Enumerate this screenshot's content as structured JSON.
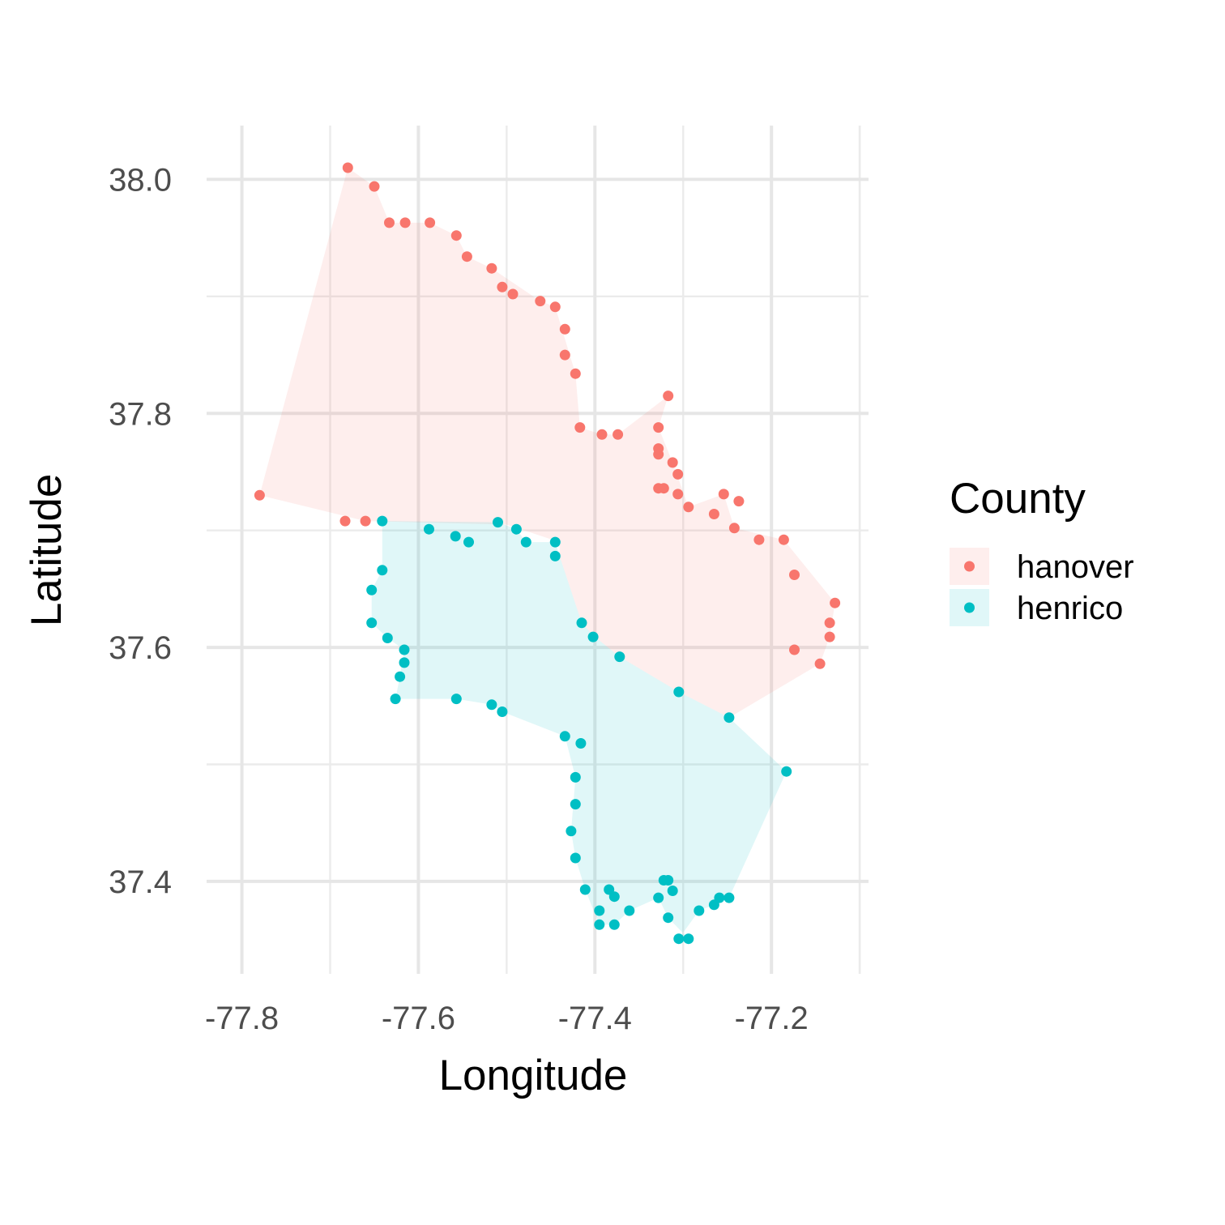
{
  "chart_data": {
    "type": "scatter",
    "title": "",
    "xlabel": "Longitude",
    "ylabel": "Latitude",
    "xlim": [
      -77.84,
      -77.09
    ],
    "ylim": [
      37.321,
      38.046
    ],
    "x_ticks": [
      -77.8,
      -77.6,
      -77.4,
      -77.2
    ],
    "x_tick_labels": [
      "-77.8",
      "-77.6",
      "-77.4",
      "-77.2"
    ],
    "y_ticks": [
      37.4,
      37.6,
      37.8,
      38.0
    ],
    "y_tick_labels": [
      "37.4",
      "37.6",
      "37.8",
      "38.0"
    ],
    "grid": true,
    "legend": {
      "title": "County",
      "position": "right"
    },
    "series": [
      {
        "name": "hanover",
        "color": "#F8766D",
        "points": [
          [
            -77.68,
            38.01
          ],
          [
            -77.65,
            37.994
          ],
          [
            -77.633,
            37.963
          ],
          [
            -77.615,
            37.963
          ],
          [
            -77.587,
            37.963
          ],
          [
            -77.557,
            37.952
          ],
          [
            -77.545,
            37.934
          ],
          [
            -77.517,
            37.924
          ],
          [
            -77.505,
            37.908
          ],
          [
            -77.493,
            37.902
          ],
          [
            -77.462,
            37.896
          ],
          [
            -77.445,
            37.891
          ],
          [
            -77.434,
            37.872
          ],
          [
            -77.434,
            37.85
          ],
          [
            -77.422,
            37.834
          ],
          [
            -77.417,
            37.788
          ],
          [
            -77.392,
            37.782
          ],
          [
            -77.374,
            37.782
          ],
          [
            -77.328,
            37.788
          ],
          [
            -77.328,
            37.77
          ],
          [
            -77.328,
            37.765
          ],
          [
            -77.317,
            37.815
          ],
          [
            -77.312,
            37.758
          ],
          [
            -77.306,
            37.748
          ],
          [
            -77.328,
            37.736
          ],
          [
            -77.322,
            37.736
          ],
          [
            -77.306,
            37.731
          ],
          [
            -77.294,
            37.72
          ],
          [
            -77.265,
            37.714
          ],
          [
            -77.254,
            37.731
          ],
          [
            -77.237,
            37.725
          ],
          [
            -77.242,
            37.702
          ],
          [
            -77.214,
            37.692
          ],
          [
            -77.186,
            37.692
          ],
          [
            -77.174,
            37.662
          ],
          [
            -77.128,
            37.638
          ],
          [
            -77.134,
            37.621
          ],
          [
            -77.134,
            37.609
          ],
          [
            -77.174,
            37.598
          ],
          [
            -77.145,
            37.586
          ],
          [
            -77.78,
            37.73
          ],
          [
            -77.683,
            37.708
          ],
          [
            -77.66,
            37.708
          ]
        ],
        "hull": [
          [
            -77.68,
            38.01
          ],
          [
            -77.65,
            37.994
          ],
          [
            -77.633,
            37.963
          ],
          [
            -77.587,
            37.963
          ],
          [
            -77.557,
            37.952
          ],
          [
            -77.545,
            37.934
          ],
          [
            -77.517,
            37.924
          ],
          [
            -77.462,
            37.896
          ],
          [
            -77.445,
            37.891
          ],
          [
            -77.422,
            37.834
          ],
          [
            -77.417,
            37.788
          ],
          [
            -77.392,
            37.782
          ],
          [
            -77.374,
            37.782
          ],
          [
            -77.317,
            37.815
          ],
          [
            -77.328,
            37.788
          ],
          [
            -77.312,
            37.758
          ],
          [
            -77.294,
            37.72
          ],
          [
            -77.254,
            37.731
          ],
          [
            -77.242,
            37.702
          ],
          [
            -77.186,
            37.692
          ],
          [
            -77.128,
            37.638
          ],
          [
            -77.134,
            37.609
          ],
          [
            -77.145,
            37.586
          ],
          [
            -77.248,
            37.54
          ],
          [
            -77.305,
            37.562
          ],
          [
            -77.372,
            37.592
          ],
          [
            -77.4,
            37.609
          ],
          [
            -77.415,
            37.621
          ],
          [
            -77.44,
            37.678
          ],
          [
            -77.44,
            37.69
          ],
          [
            -77.5,
            37.705
          ],
          [
            -77.66,
            37.708
          ],
          [
            -77.78,
            37.73
          ]
        ]
      },
      {
        "name": "henrico",
        "color": "#00BFC4",
        "points": [
          [
            -77.641,
            37.708
          ],
          [
            -77.588,
            37.701
          ],
          [
            -77.558,
            37.695
          ],
          [
            -77.543,
            37.69
          ],
          [
            -77.51,
            37.707
          ],
          [
            -77.489,
            37.701
          ],
          [
            -77.478,
            37.69
          ],
          [
            -77.445,
            37.69
          ],
          [
            -77.445,
            37.678
          ],
          [
            -77.641,
            37.666
          ],
          [
            -77.653,
            37.649
          ],
          [
            -77.653,
            37.621
          ],
          [
            -77.635,
            37.608
          ],
          [
            -77.616,
            37.598
          ],
          [
            -77.616,
            37.587
          ],
          [
            -77.621,
            37.575
          ],
          [
            -77.626,
            37.556
          ],
          [
            -77.557,
            37.556
          ],
          [
            -77.517,
            37.551
          ],
          [
            -77.505,
            37.545
          ],
          [
            -77.415,
            37.621
          ],
          [
            -77.402,
            37.609
          ],
          [
            -77.372,
            37.592
          ],
          [
            -77.305,
            37.562
          ],
          [
            -77.248,
            37.54
          ],
          [
            -77.183,
            37.494
          ],
          [
            -77.434,
            37.524
          ],
          [
            -77.416,
            37.518
          ],
          [
            -77.422,
            37.489
          ],
          [
            -77.422,
            37.466
          ],
          [
            -77.427,
            37.443
          ],
          [
            -77.422,
            37.42
          ],
          [
            -77.411,
            37.393
          ],
          [
            -77.384,
            37.393
          ],
          [
            -77.378,
            37.387
          ],
          [
            -77.395,
            37.375
          ],
          [
            -77.395,
            37.363
          ],
          [
            -77.378,
            37.363
          ],
          [
            -77.361,
            37.375
          ],
          [
            -77.322,
            37.401
          ],
          [
            -77.317,
            37.401
          ],
          [
            -77.312,
            37.392
          ],
          [
            -77.328,
            37.386
          ],
          [
            -77.317,
            37.369
          ],
          [
            -77.305,
            37.351
          ],
          [
            -77.294,
            37.351
          ],
          [
            -77.282,
            37.375
          ],
          [
            -77.265,
            37.38
          ],
          [
            -77.259,
            37.386
          ],
          [
            -77.248,
            37.386
          ]
        ],
        "hull": [
          [
            -77.641,
            37.708
          ],
          [
            -77.51,
            37.707
          ],
          [
            -77.489,
            37.701
          ],
          [
            -77.478,
            37.69
          ],
          [
            -77.445,
            37.69
          ],
          [
            -77.44,
            37.678
          ],
          [
            -77.415,
            37.621
          ],
          [
            -77.4,
            37.609
          ],
          [
            -77.372,
            37.592
          ],
          [
            -77.305,
            37.562
          ],
          [
            -77.248,
            37.54
          ],
          [
            -77.183,
            37.494
          ],
          [
            -77.248,
            37.386
          ],
          [
            -77.265,
            37.38
          ],
          [
            -77.282,
            37.375
          ],
          [
            -77.305,
            37.351
          ],
          [
            -77.294,
            37.351
          ],
          [
            -77.317,
            37.369
          ],
          [
            -77.328,
            37.386
          ],
          [
            -77.361,
            37.375
          ],
          [
            -77.378,
            37.363
          ],
          [
            -77.395,
            37.363
          ],
          [
            -77.411,
            37.393
          ],
          [
            -77.422,
            37.42
          ],
          [
            -77.427,
            37.443
          ],
          [
            -77.422,
            37.489
          ],
          [
            -77.434,
            37.524
          ],
          [
            -77.505,
            37.545
          ],
          [
            -77.517,
            37.551
          ],
          [
            -77.557,
            37.556
          ],
          [
            -77.626,
            37.556
          ],
          [
            -77.621,
            37.575
          ],
          [
            -77.616,
            37.598
          ],
          [
            -77.635,
            37.608
          ],
          [
            -77.653,
            37.621
          ],
          [
            -77.653,
            37.649
          ],
          [
            -77.641,
            37.666
          ]
        ]
      }
    ]
  }
}
